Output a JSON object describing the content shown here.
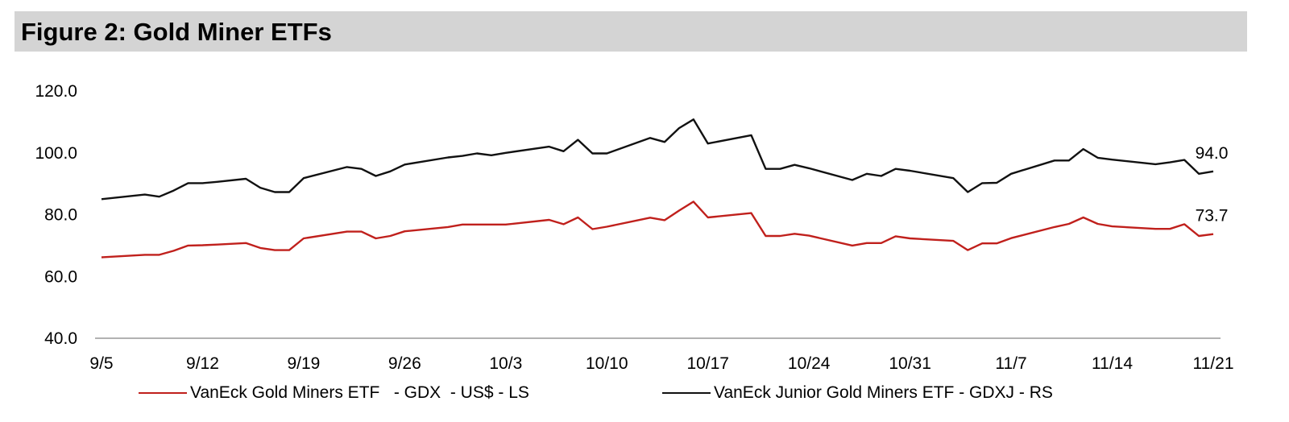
{
  "figure_title": "Figure 2: Gold Miner ETFs",
  "chart_data": {
    "type": "line",
    "title": "Figure 2: Gold Miner ETFs",
    "xlabel": "",
    "ylabel": "",
    "ylim": [
      40,
      120
    ],
    "yticks": [
      40.0,
      60.0,
      80.0,
      100.0,
      120.0
    ],
    "ytick_labels": [
      "40.0",
      "60.0",
      "80.0",
      "100.0",
      "120.0"
    ],
    "xtick_labels": [
      "9/5",
      "9/12",
      "9/19",
      "9/26",
      "10/3",
      "10/10",
      "10/17",
      "10/24",
      "10/31",
      "11/7",
      "11/14",
      "11/21"
    ],
    "xtick_days": [
      0,
      7,
      14,
      21,
      28,
      35,
      42,
      49,
      56,
      63,
      70,
      77
    ],
    "x_day_range": [
      0,
      77
    ],
    "grid": false,
    "legend_position": "bottom",
    "series": [
      {
        "name": "VanEck Gold Miners ETF   - GDX  - US$ - LS",
        "color": "#c0201c",
        "end_label": "73.7",
        "x": [
          0,
          3,
          4,
          5,
          6,
          7,
          8,
          10,
          11,
          12,
          13,
          14,
          17,
          18,
          19,
          20,
          21,
          24,
          25,
          26,
          27,
          28,
          31,
          32,
          33,
          34,
          35,
          38,
          39,
          40,
          41,
          42,
          45,
          46,
          47,
          48,
          49,
          52,
          53,
          54,
          55,
          56,
          59,
          60,
          61,
          62,
          63,
          66,
          67,
          68,
          69,
          70,
          73,
          74,
          75,
          76,
          77
        ],
        "values": [
          66.2,
          67.0,
          67.0,
          68.3,
          70.0,
          70.1,
          70.3,
          70.8,
          69.2,
          68.5,
          68.5,
          72.3,
          74.5,
          74.5,
          72.3,
          73.1,
          74.6,
          76.0,
          76.8,
          76.8,
          76.8,
          76.8,
          78.3,
          76.9,
          79.1,
          75.3,
          76.1,
          79.0,
          78.2,
          81.3,
          84.2,
          79.1,
          80.5,
          73.1,
          73.1,
          73.8,
          73.2,
          70.0,
          70.8,
          70.8,
          73.0,
          72.3,
          71.5,
          68.5,
          70.7,
          70.7,
          72.4,
          76.0,
          77.0,
          79.1,
          77.0,
          76.2,
          75.4,
          75.4,
          76.9,
          73.1,
          73.7
        ]
      },
      {
        "name": "VanEck Junior Gold Miners ETF - GDXJ - RS",
        "color": "#111111",
        "end_label": "94.0",
        "x": [
          0,
          3,
          4,
          5,
          6,
          7,
          8,
          10,
          11,
          12,
          13,
          14,
          17,
          18,
          19,
          20,
          21,
          24,
          25,
          26,
          27,
          28,
          31,
          32,
          33,
          34,
          35,
          38,
          39,
          40,
          41,
          42,
          45,
          46,
          47,
          48,
          49,
          52,
          53,
          54,
          55,
          56,
          59,
          60,
          61,
          62,
          63,
          66,
          67,
          68,
          69,
          70,
          73,
          74,
          75,
          76,
          77
        ],
        "values": [
          85.0,
          86.5,
          85.8,
          87.8,
          90.2,
          90.2,
          90.6,
          91.6,
          88.7,
          87.3,
          87.3,
          91.8,
          95.4,
          94.8,
          92.5,
          94.0,
          96.2,
          98.5,
          99.0,
          99.8,
          99.2,
          100.0,
          102.0,
          100.5,
          104.2,
          99.8,
          99.8,
          104.8,
          103.5,
          108.0,
          110.8,
          103.0,
          105.7,
          94.8,
          94.8,
          96.1,
          95.0,
          91.2,
          93.2,
          92.5,
          94.8,
          94.2,
          91.8,
          87.3,
          90.2,
          90.3,
          93.2,
          97.5,
          97.5,
          101.2,
          98.4,
          97.8,
          96.3,
          96.9,
          97.7,
          93.2,
          94.0
        ]
      }
    ]
  }
}
